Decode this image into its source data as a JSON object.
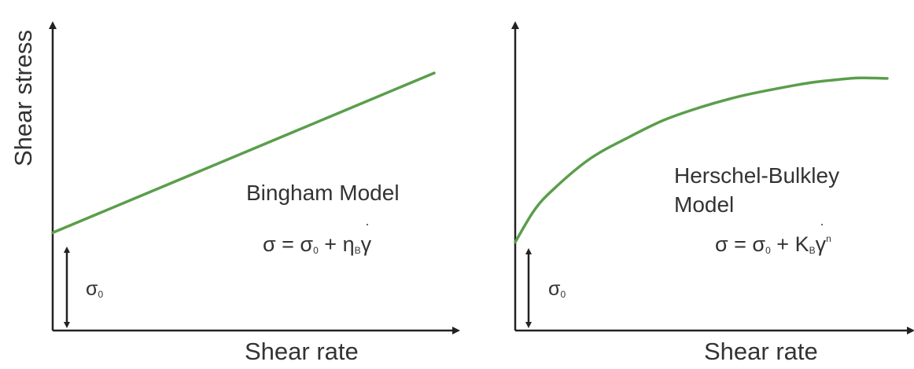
{
  "colors": {
    "curve": "#5a9e4b",
    "axis": "#222222",
    "text": "#333333"
  },
  "y_axis_label": "Shear stress",
  "chart_data": [
    {
      "type": "line",
      "model_label": "Bingham Model",
      "equation": {
        "lhs": "σ = σ",
        "sub0": "0",
        "plus": " + η",
        "subB": "B",
        "gamma": "γ",
        "sup": ""
      },
      "yield_label": {
        "sym": "σ",
        "sub": "0"
      },
      "xlabel": "Shear rate",
      "ylabel": "Shear stress",
      "xlim": [
        0,
        10
      ],
      "ylim": [
        0,
        10
      ],
      "series": [
        {
          "x": [
            0,
            10
          ],
          "y": [
            3.8,
            10
          ]
        }
      ],
      "yield_stress": 3.8,
      "grid": false
    },
    {
      "type": "line",
      "model_label_lines": [
        "Herschel-Bulkley",
        "Model"
      ],
      "equation": {
        "lhs": "σ = σ",
        "sub0": "0",
        "plus": " + K",
        "subB": "B",
        "gamma": "γ",
        "sup": "n"
      },
      "yield_label": {
        "sym": "σ",
        "sub": "0"
      },
      "xlabel": "Shear rate",
      "xlim": [
        0,
        10
      ],
      "ylim": [
        0,
        10
      ],
      "series": [
        {
          "x": [
            0,
            0.5,
            1,
            2,
            3,
            4,
            5,
            6,
            7,
            8,
            9,
            9.4,
            10
          ],
          "y": [
            3.4,
            4.6,
            5.4,
            6.6,
            7.4,
            8.1,
            8.6,
            9.0,
            9.3,
            9.55,
            9.7,
            9.72,
            9.7
          ]
        }
      ],
      "yield_stress": 3.4,
      "grid": false
    }
  ]
}
